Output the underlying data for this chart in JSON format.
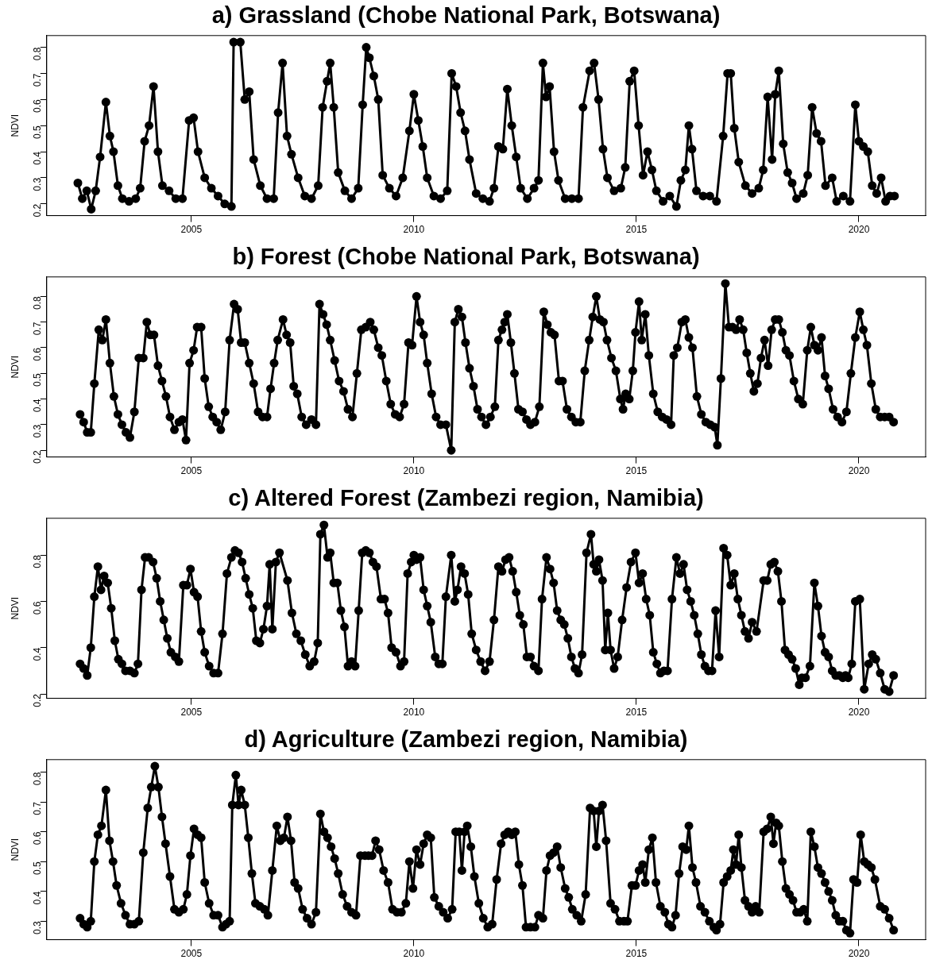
{
  "chart_data": [
    {
      "type": "line",
      "title": "a) Grassland (Chobe National Park, Botswana)",
      "ylabel": "NDVI",
      "marker": "circle",
      "line_style": "solid",
      "grid": false,
      "xlim": [
        2001.75,
        2021.5
      ],
      "ylim": [
        0.155,
        0.845
      ],
      "xticks": [
        2005,
        2010,
        2015,
        2020
      ],
      "yticks": [
        0.2,
        0.3,
        0.4,
        0.5,
        0.6,
        0.7,
        0.8
      ],
      "x": [
        2002.45,
        2002.55,
        2002.65,
        2002.75,
        2002.85,
        2002.95,
        2003.08,
        2003.17,
        2003.25,
        2003.35,
        2003.45,
        2003.6,
        2003.75,
        2003.85,
        2003.95,
        2004.05,
        2004.15,
        2004.25,
        2004.35,
        2004.5,
        2004.65,
        2004.8,
        2004.95,
        2005.05,
        2005.15,
        2005.3,
        2005.45,
        2005.6,
        2005.75,
        2005.9,
        2005.95,
        2006.1,
        2006.2,
        2006.3,
        2006.4,
        2006.55,
        2006.7,
        2006.85,
        2006.95,
        2007.05,
        2007.15,
        2007.25,
        2007.4,
        2007.55,
        2007.7,
        2007.85,
        2007.95,
        2008.05,
        2008.12,
        2008.2,
        2008.3,
        2008.45,
        2008.6,
        2008.75,
        2008.85,
        2008.93,
        2009.0,
        2009.1,
        2009.2,
        2009.3,
        2009.45,
        2009.6,
        2009.75,
        2009.9,
        2010.0,
        2010.1,
        2010.2,
        2010.3,
        2010.45,
        2010.6,
        2010.75,
        2010.85,
        2010.95,
        2011.05,
        2011.15,
        2011.25,
        2011.4,
        2011.55,
        2011.7,
        2011.8,
        2011.9,
        2012.0,
        2012.1,
        2012.2,
        2012.3,
        2012.4,
        2012.55,
        2012.7,
        2012.8,
        2012.9,
        2012.97,
        2013.05,
        2013.15,
        2013.25,
        2013.4,
        2013.55,
        2013.7,
        2013.8,
        2013.95,
        2014.05,
        2014.15,
        2014.25,
        2014.35,
        2014.5,
        2014.65,
        2014.75,
        2014.85,
        2014.95,
        2015.05,
        2015.15,
        2015.25,
        2015.35,
        2015.45,
        2015.6,
        2015.75,
        2015.9,
        2016.0,
        2016.1,
        2016.18,
        2016.25,
        2016.35,
        2016.5,
        2016.65,
        2016.8,
        2016.95,
        2017.05,
        2017.12,
        2017.2,
        2017.3,
        2017.45,
        2017.6,
        2017.75,
        2017.85,
        2017.95,
        2018.05,
        2018.12,
        2018.2,
        2018.3,
        2018.4,
        2018.5,
        2018.6,
        2018.75,
        2018.85,
        2018.95,
        2019.05,
        2019.15,
        2019.25,
        2019.4,
        2019.5,
        2019.65,
        2019.8,
        2019.92,
        2020.0,
        2020.1,
        2020.2,
        2020.3,
        2020.4,
        2020.5,
        2020.6,
        2020.7,
        2020.8
      ],
      "series": [
        {
          "color": "#000000",
          "values": [
            0.28,
            0.22,
            0.25,
            0.18,
            0.25,
            0.38,
            0.59,
            0.46,
            0.4,
            0.27,
            0.22,
            0.21,
            0.22,
            0.26,
            0.44,
            0.5,
            0.65,
            0.4,
            0.27,
            0.25,
            0.22,
            0.22,
            0.52,
            0.53,
            0.4,
            0.3,
            0.26,
            0.23,
            0.2,
            0.19,
            0.82,
            0.82,
            0.6,
            0.63,
            0.37,
            0.27,
            0.22,
            0.22,
            0.55,
            0.74,
            0.46,
            0.39,
            0.3,
            0.23,
            0.22,
            0.27,
            0.57,
            0.67,
            0.74,
            0.57,
            0.32,
            0.25,
            0.22,
            0.26,
            0.58,
            0.8,
            0.76,
            0.69,
            0.6,
            0.31,
            0.26,
            0.23,
            0.3,
            0.48,
            0.62,
            0.52,
            0.42,
            0.3,
            0.23,
            0.22,
            0.25,
            0.7,
            0.65,
            0.55,
            0.48,
            0.37,
            0.24,
            0.22,
            0.21,
            0.26,
            0.42,
            0.41,
            0.64,
            0.5,
            0.38,
            0.26,
            0.22,
            0.26,
            0.29,
            0.74,
            0.61,
            0.65,
            0.4,
            0.29,
            0.22,
            0.22,
            0.22,
            0.57,
            0.71,
            0.74,
            0.6,
            0.41,
            0.3,
            0.25,
            0.26,
            0.34,
            0.67,
            0.71,
            0.5,
            0.31,
            0.4,
            0.33,
            0.25,
            0.21,
            0.23,
            0.19,
            0.29,
            0.33,
            0.5,
            0.41,
            0.25,
            0.23,
            0.23,
            0.21,
            0.46,
            0.7,
            0.7,
            0.49,
            0.36,
            0.27,
            0.24,
            0.26,
            0.33,
            0.61,
            0.37,
            0.62,
            0.71,
            0.43,
            0.32,
            0.28,
            0.22,
            0.24,
            0.31,
            0.57,
            0.47,
            0.44,
            0.27,
            0.3,
            0.21,
            0.23,
            0.21,
            0.58,
            0.44,
            0.42,
            0.4,
            0.27,
            0.24,
            0.3,
            0.21,
            0.23,
            0.23
          ]
        }
      ]
    },
    {
      "type": "line",
      "title": "b) Forest (Chobe National Park, Botswana)",
      "ylabel": "NDVI",
      "marker": "circle",
      "line_style": "solid",
      "grid": false,
      "xlim": [
        2001.75,
        2021.5
      ],
      "ylim": [
        0.174,
        0.876
      ],
      "xticks": [
        2005,
        2010,
        2015,
        2020
      ],
      "yticks": [
        0.2,
        0.3,
        0.4,
        0.5,
        0.6,
        0.7,
        0.8
      ],
      "x": [
        2002.5,
        2002.58,
        2002.66,
        2002.74,
        2002.82,
        2002.92,
        2003.0,
        2003.08,
        2003.17,
        2003.26,
        2003.35,
        2003.44,
        2003.53,
        2003.62,
        2003.72,
        2003.82,
        2003.92,
        2004.0,
        2004.08,
        2004.16,
        2004.25,
        2004.34,
        2004.43,
        2004.52,
        2004.62,
        2004.72,
        2004.8,
        2004.88,
        2004.96,
        2005.05,
        2005.13,
        2005.22,
        2005.3,
        2005.39,
        2005.48,
        2005.57,
        2005.66,
        2005.76,
        2005.86,
        2005.96,
        2006.04,
        2006.12,
        2006.2,
        2006.3,
        2006.4,
        2006.5,
        2006.6,
        2006.7,
        2006.78,
        2006.86,
        2006.94,
        2007.06,
        2007.14,
        2007.22,
        2007.3,
        2007.38,
        2007.48,
        2007.58,
        2007.7,
        2007.8,
        2007.88,
        2007.96,
        2008.04,
        2008.12,
        2008.22,
        2008.32,
        2008.42,
        2008.52,
        2008.62,
        2008.72,
        2008.82,
        2008.92,
        2009.02,
        2009.1,
        2009.2,
        2009.28,
        2009.38,
        2009.48,
        2009.58,
        2009.68,
        2009.78,
        2009.88,
        2009.96,
        2010.06,
        2010.14,
        2010.22,
        2010.3,
        2010.4,
        2010.5,
        2010.6,
        2010.72,
        2010.84,
        2010.92,
        2011.0,
        2011.08,
        2011.16,
        2011.25,
        2011.34,
        2011.43,
        2011.52,
        2011.62,
        2011.72,
        2011.82,
        2011.9,
        2011.98,
        2012.04,
        2012.1,
        2012.18,
        2012.26,
        2012.35,
        2012.44,
        2012.53,
        2012.62,
        2012.72,
        2012.82,
        2012.92,
        2013.0,
        2013.08,
        2013.16,
        2013.26,
        2013.34,
        2013.44,
        2013.54,
        2013.64,
        2013.74,
        2013.84,
        2013.94,
        2014.02,
        2014.1,
        2014.18,
        2014.26,
        2014.34,
        2014.44,
        2014.54,
        2014.64,
        2014.7,
        2014.76,
        2014.84,
        2014.92,
        2014.98,
        2015.06,
        2015.12,
        2015.2,
        2015.28,
        2015.38,
        2015.48,
        2015.58,
        2015.68,
        2015.78,
        2015.84,
        2015.92,
        2016.02,
        2016.1,
        2016.18,
        2016.26,
        2016.36,
        2016.46,
        2016.56,
        2016.66,
        2016.76,
        2016.82,
        2016.9,
        2017.0,
        2017.08,
        2017.16,
        2017.24,
        2017.32,
        2017.4,
        2017.48,
        2017.56,
        2017.64,
        2017.72,
        2017.8,
        2017.88,
        2017.96,
        2018.04,
        2018.12,
        2018.2,
        2018.28,
        2018.36,
        2018.44,
        2018.54,
        2018.64,
        2018.74,
        2018.84,
        2018.92,
        2019.0,
        2019.08,
        2019.16,
        2019.24,
        2019.32,
        2019.42,
        2019.52,
        2019.62,
        2019.72,
        2019.82,
        2019.92,
        2020.02,
        2020.1,
        2020.18,
        2020.28,
        2020.38,
        2020.48,
        2020.58,
        2020.68,
        2020.78
      ],
      "series": [
        {
          "color": "#000000",
          "values": [
            0.34,
            0.31,
            0.27,
            0.27,
            0.46,
            0.67,
            0.63,
            0.71,
            0.54,
            0.41,
            0.34,
            0.3,
            0.27,
            0.25,
            0.35,
            0.56,
            0.56,
            0.7,
            0.65,
            0.65,
            0.53,
            0.47,
            0.41,
            0.33,
            0.28,
            0.31,
            0.32,
            0.24,
            0.54,
            0.59,
            0.68,
            0.68,
            0.48,
            0.37,
            0.33,
            0.31,
            0.28,
            0.35,
            0.63,
            0.77,
            0.75,
            0.62,
            0.62,
            0.54,
            0.46,
            0.35,
            0.33,
            0.33,
            0.44,
            0.54,
            0.63,
            0.71,
            0.65,
            0.62,
            0.45,
            0.42,
            0.33,
            0.3,
            0.32,
            0.3,
            0.77,
            0.73,
            0.69,
            0.63,
            0.55,
            0.47,
            0.43,
            0.36,
            0.33,
            0.5,
            0.67,
            0.68,
            0.7,
            0.67,
            0.6,
            0.57,
            0.47,
            0.38,
            0.34,
            0.33,
            0.38,
            0.62,
            0.61,
            0.8,
            0.7,
            0.65,
            0.54,
            0.42,
            0.33,
            0.3,
            0.3,
            0.2,
            0.7,
            0.75,
            0.72,
            0.62,
            0.52,
            0.45,
            0.36,
            0.33,
            0.3,
            0.33,
            0.37,
            0.63,
            0.67,
            0.7,
            0.73,
            0.62,
            0.5,
            0.36,
            0.35,
            0.32,
            0.3,
            0.31,
            0.37,
            0.74,
            0.69,
            0.66,
            0.65,
            0.47,
            0.47,
            0.36,
            0.33,
            0.31,
            0.31,
            0.51,
            0.63,
            0.72,
            0.8,
            0.71,
            0.7,
            0.63,
            0.56,
            0.51,
            0.4,
            0.36,
            0.42,
            0.4,
            0.51,
            0.66,
            0.78,
            0.63,
            0.73,
            0.57,
            0.42,
            0.35,
            0.33,
            0.32,
            0.3,
            0.57,
            0.6,
            0.7,
            0.71,
            0.64,
            0.6,
            0.41,
            0.34,
            0.31,
            0.3,
            0.29,
            0.22,
            0.48,
            0.85,
            0.68,
            0.68,
            0.67,
            0.71,
            0.67,
            0.58,
            0.5,
            0.43,
            0.46,
            0.56,
            0.63,
            0.53,
            0.67,
            0.71,
            0.71,
            0.66,
            0.59,
            0.57,
            0.47,
            0.4,
            0.38,
            0.59,
            0.68,
            0.61,
            0.59,
            0.64,
            0.49,
            0.44,
            0.36,
            0.33,
            0.31,
            0.35,
            0.5,
            0.64,
            0.74,
            0.67,
            0.61,
            0.46,
            0.36,
            0.33,
            0.33,
            0.33,
            0.31
          ]
        }
      ]
    },
    {
      "type": "line",
      "title": "c) Altered Forest (Zambezi region, Namibia)",
      "ylabel": "NDVI",
      "marker": "circle",
      "line_style": "solid",
      "grid": false,
      "xlim": [
        2001.75,
        2021.5
      ],
      "ylim": [
        0.181,
        0.959
      ],
      "xticks": [
        2005,
        2010,
        2015,
        2020
      ],
      "yticks": [
        0.2,
        0.4,
        0.6,
        0.8
      ],
      "x": [
        2002.5,
        2002.58,
        2002.66,
        2002.74,
        2002.82,
        2002.9,
        2002.97,
        2003.04,
        2003.12,
        2003.2,
        2003.28,
        2003.36,
        2003.44,
        2003.52,
        2003.62,
        2003.72,
        2003.8,
        2003.88,
        2003.96,
        2004.04,
        2004.14,
        2004.22,
        2004.3,
        2004.38,
        2004.46,
        2004.54,
        2004.64,
        2004.72,
        2004.82,
        2004.9,
        2004.98,
        2005.06,
        2005.14,
        2005.22,
        2005.3,
        2005.4,
        2005.5,
        2005.6,
        2005.7,
        2005.8,
        2005.9,
        2005.98,
        2006.06,
        2006.14,
        2006.22,
        2006.3,
        2006.38,
        2006.46,
        2006.54,
        2006.62,
        2006.7,
        2006.76,
        2006.82,
        2006.9,
        2006.98,
        2007.16,
        2007.26,
        2007.36,
        2007.46,
        2007.56,
        2007.66,
        2007.76,
        2007.84,
        2007.9,
        2007.98,
        2008.06,
        2008.12,
        2008.2,
        2008.28,
        2008.36,
        2008.44,
        2008.52,
        2008.6,
        2008.68,
        2008.76,
        2008.84,
        2008.92,
        2009.0,
        2009.08,
        2009.16,
        2009.26,
        2009.34,
        2009.42,
        2009.5,
        2009.6,
        2009.7,
        2009.78,
        2009.86,
        2009.94,
        2010.0,
        2010.06,
        2010.14,
        2010.22,
        2010.3,
        2010.38,
        2010.48,
        2010.56,
        2010.64,
        2010.72,
        2010.84,
        2010.92,
        2010.98,
        2011.06,
        2011.14,
        2011.22,
        2011.3,
        2011.4,
        2011.5,
        2011.6,
        2011.7,
        2011.8,
        2011.9,
        2011.98,
        2012.06,
        2012.14,
        2012.22,
        2012.3,
        2012.38,
        2012.46,
        2012.54,
        2012.62,
        2012.7,
        2012.8,
        2012.88,
        2012.98,
        2013.06,
        2013.14,
        2013.22,
        2013.3,
        2013.38,
        2013.46,
        2013.54,
        2013.62,
        2013.7,
        2013.78,
        2013.88,
        2013.98,
        2014.04,
        2014.1,
        2014.16,
        2014.24,
        2014.3,
        2014.36,
        2014.42,
        2014.5,
        2014.58,
        2014.68,
        2014.78,
        2014.88,
        2014.98,
        2015.06,
        2015.14,
        2015.22,
        2015.3,
        2015.38,
        2015.46,
        2015.54,
        2015.62,
        2015.7,
        2015.8,
        2015.9,
        2015.98,
        2016.06,
        2016.14,
        2016.22,
        2016.3,
        2016.38,
        2016.46,
        2016.54,
        2016.62,
        2016.7,
        2016.78,
        2016.86,
        2016.96,
        2017.04,
        2017.12,
        2017.2,
        2017.28,
        2017.36,
        2017.44,
        2017.52,
        2017.6,
        2017.7,
        2017.86,
        2017.94,
        2018.02,
        2018.1,
        2018.18,
        2018.26,
        2018.34,
        2018.42,
        2018.5,
        2018.58,
        2018.66,
        2018.72,
        2018.8,
        2018.9,
        2019.0,
        2019.08,
        2019.16,
        2019.24,
        2019.32,
        2019.4,
        2019.48,
        2019.56,
        2019.64,
        2019.7,
        2019.76,
        2019.84,
        2019.92,
        2020.02,
        2020.12,
        2020.22,
        2020.3,
        2020.38,
        2020.48,
        2020.58,
        2020.68,
        2020.78
      ],
      "series": [
        {
          "color": "#000000",
          "values": [
            0.33,
            0.31,
            0.28,
            0.4,
            0.62,
            0.75,
            0.65,
            0.71,
            0.68,
            0.57,
            0.43,
            0.35,
            0.33,
            0.3,
            0.3,
            0.29,
            0.33,
            0.65,
            0.79,
            0.79,
            0.77,
            0.7,
            0.6,
            0.52,
            0.44,
            0.38,
            0.36,
            0.34,
            0.67,
            0.67,
            0.74,
            0.64,
            0.62,
            0.47,
            0.38,
            0.32,
            0.29,
            0.29,
            0.46,
            0.72,
            0.79,
            0.82,
            0.81,
            0.77,
            0.7,
            0.63,
            0.57,
            0.43,
            0.42,
            0.48,
            0.58,
            0.76,
            0.48,
            0.77,
            0.81,
            0.69,
            0.55,
            0.46,
            0.43,
            0.37,
            0.32,
            0.34,
            0.42,
            0.89,
            0.93,
            0.79,
            0.81,
            0.68,
            0.68,
            0.56,
            0.49,
            0.32,
            0.34,
            0.32,
            0.56,
            0.81,
            0.82,
            0.81,
            0.77,
            0.75,
            0.61,
            0.61,
            0.55,
            0.4,
            0.38,
            0.32,
            0.34,
            0.72,
            0.77,
            0.8,
            0.78,
            0.79,
            0.65,
            0.58,
            0.51,
            0.36,
            0.33,
            0.33,
            0.62,
            0.8,
            0.6,
            0.65,
            0.75,
            0.72,
            0.63,
            0.46,
            0.39,
            0.34,
            0.3,
            0.34,
            0.52,
            0.75,
            0.73,
            0.78,
            0.79,
            0.73,
            0.64,
            0.54,
            0.5,
            0.36,
            0.36,
            0.32,
            0.3,
            0.61,
            0.79,
            0.74,
            0.68,
            0.56,
            0.52,
            0.5,
            0.44,
            0.36,
            0.31,
            0.29,
            0.37,
            0.81,
            0.89,
            0.76,
            0.73,
            0.78,
            0.69,
            0.39,
            0.55,
            0.39,
            0.31,
            0.36,
            0.52,
            0.66,
            0.77,
            0.81,
            0.68,
            0.72,
            0.61,
            0.54,
            0.38,
            0.33,
            0.29,
            0.3,
            0.3,
            0.61,
            0.79,
            0.72,
            0.76,
            0.65,
            0.6,
            0.54,
            0.46,
            0.37,
            0.32,
            0.3,
            0.3,
            0.56,
            0.36,
            0.83,
            0.8,
            0.67,
            0.72,
            0.61,
            0.54,
            0.47,
            0.44,
            0.51,
            0.47,
            0.69,
            0.69,
            0.76,
            0.77,
            0.73,
            0.6,
            0.39,
            0.37,
            0.35,
            0.31,
            0.24,
            0.27,
            0.27,
            0.32,
            0.68,
            0.58,
            0.45,
            0.38,
            0.36,
            0.3,
            0.28,
            0.28,
            0.27,
            0.28,
            0.27,
            0.33,
            0.6,
            0.61,
            0.22,
            0.33,
            0.37,
            0.35,
            0.29,
            0.22,
            0.21,
            0.28
          ]
        }
      ]
    },
    {
      "type": "line",
      "title": "d) Agriculture (Zambezi region, Namibia)",
      "ylabel": "NDVI",
      "marker": "circle",
      "line_style": "solid",
      "grid": false,
      "xlim": [
        2001.75,
        2021.5
      ],
      "ylim": [
        0.238,
        0.842
      ],
      "xticks": [
        2005,
        2010,
        2015,
        2020
      ],
      "yticks": [
        0.3,
        0.4,
        0.5,
        0.6,
        0.7,
        0.8
      ],
      "x": [
        2002.5,
        2002.58,
        2002.66,
        2002.74,
        2002.82,
        2002.9,
        2002.98,
        2003.08,
        2003.16,
        2003.24,
        2003.32,
        2003.42,
        2003.52,
        2003.62,
        2003.72,
        2003.82,
        2003.92,
        2004.02,
        2004.1,
        2004.18,
        2004.26,
        2004.34,
        2004.42,
        2004.52,
        2004.62,
        2004.72,
        2004.82,
        2004.9,
        2004.98,
        2005.06,
        2005.14,
        2005.22,
        2005.3,
        2005.4,
        2005.5,
        2005.6,
        2005.7,
        2005.78,
        2005.86,
        2005.92,
        2006.0,
        2006.06,
        2006.12,
        2006.2,
        2006.28,
        2006.36,
        2006.44,
        2006.54,
        2006.64,
        2006.72,
        2006.82,
        2006.92,
        2007.0,
        2007.08,
        2007.16,
        2007.24,
        2007.32,
        2007.4,
        2007.5,
        2007.6,
        2007.7,
        2007.8,
        2007.9,
        2007.98,
        2008.06,
        2008.14,
        2008.22,
        2008.3,
        2008.4,
        2008.5,
        2008.6,
        2008.7,
        2008.8,
        2008.9,
        2008.98,
        2009.06,
        2009.14,
        2009.22,
        2009.32,
        2009.42,
        2009.52,
        2009.62,
        2009.72,
        2009.82,
        2009.9,
        2009.98,
        2010.06,
        2010.14,
        2010.22,
        2010.3,
        2010.38,
        2010.46,
        2010.56,
        2010.66,
        2010.76,
        2010.86,
        2010.94,
        2011.02,
        2011.08,
        2011.14,
        2011.2,
        2011.28,
        2011.36,
        2011.46,
        2011.56,
        2011.66,
        2011.76,
        2011.86,
        2011.96,
        2012.04,
        2012.12,
        2012.2,
        2012.28,
        2012.36,
        2012.44,
        2012.52,
        2012.62,
        2012.72,
        2012.8,
        2012.9,
        2012.98,
        2013.06,
        2013.14,
        2013.22,
        2013.3,
        2013.4,
        2013.48,
        2013.56,
        2013.66,
        2013.76,
        2013.86,
        2013.96,
        2014.04,
        2014.1,
        2014.16,
        2014.24,
        2014.32,
        2014.42,
        2014.52,
        2014.62,
        2014.72,
        2014.8,
        2014.9,
        2014.98,
        2015.06,
        2015.14,
        2015.2,
        2015.28,
        2015.36,
        2015.44,
        2015.54,
        2015.64,
        2015.72,
        2015.8,
        2015.88,
        2015.96,
        2016.04,
        2016.12,
        2016.18,
        2016.26,
        2016.34,
        2016.44,
        2016.54,
        2016.64,
        2016.74,
        2016.8,
        2016.88,
        2016.96,
        2017.04,
        2017.12,
        2017.18,
        2017.24,
        2017.3,
        2017.36,
        2017.44,
        2017.52,
        2017.6,
        2017.68,
        2017.76,
        2017.86,
        2017.94,
        2018.02,
        2018.08,
        2018.14,
        2018.2,
        2018.28,
        2018.36,
        2018.44,
        2018.52,
        2018.6,
        2018.68,
        2018.76,
        2018.84,
        2018.92,
        2019.0,
        2019.08,
        2019.16,
        2019.24,
        2019.32,
        2019.4,
        2019.48,
        2019.56,
        2019.64,
        2019.72,
        2019.8,
        2019.88,
        2019.96,
        2020.04,
        2020.12,
        2020.2,
        2020.28,
        2020.36,
        2020.48,
        2020.58,
        2020.68,
        2020.78
      ],
      "series": [
        {
          "color": "#000000",
          "values": [
            0.31,
            0.29,
            0.28,
            0.3,
            0.5,
            0.59,
            0.62,
            0.74,
            0.57,
            0.5,
            0.42,
            0.36,
            0.32,
            0.29,
            0.29,
            0.3,
            0.53,
            0.68,
            0.75,
            0.82,
            0.75,
            0.65,
            0.56,
            0.45,
            0.34,
            0.33,
            0.34,
            0.39,
            0.52,
            0.61,
            0.59,
            0.58,
            0.43,
            0.36,
            0.32,
            0.32,
            0.28,
            0.29,
            0.3,
            0.69,
            0.79,
            0.69,
            0.74,
            0.69,
            0.58,
            0.46,
            0.36,
            0.35,
            0.34,
            0.32,
            0.47,
            0.62,
            0.57,
            0.58,
            0.65,
            0.57,
            0.43,
            0.41,
            0.34,
            0.31,
            0.29,
            0.33,
            0.66,
            0.6,
            0.58,
            0.55,
            0.51,
            0.46,
            0.39,
            0.35,
            0.33,
            0.32,
            0.52,
            0.52,
            0.52,
            0.52,
            0.57,
            0.54,
            0.47,
            0.43,
            0.34,
            0.33,
            0.33,
            0.36,
            0.5,
            0.41,
            0.54,
            0.49,
            0.56,
            0.59,
            0.58,
            0.38,
            0.35,
            0.33,
            0.31,
            0.34,
            0.6,
            0.6,
            0.47,
            0.6,
            0.62,
            0.55,
            0.45,
            0.36,
            0.31,
            0.28,
            0.29,
            0.44,
            0.56,
            0.59,
            0.6,
            0.59,
            0.6,
            0.49,
            0.42,
            0.28,
            0.28,
            0.28,
            0.32,
            0.31,
            0.47,
            0.52,
            0.53,
            0.55,
            0.48,
            0.41,
            0.38,
            0.34,
            0.32,
            0.3,
            0.39,
            0.68,
            0.67,
            0.55,
            0.67,
            0.69,
            0.57,
            0.36,
            0.34,
            0.3,
            0.3,
            0.3,
            0.42,
            0.42,
            0.47,
            0.49,
            0.43,
            0.54,
            0.58,
            0.43,
            0.35,
            0.33,
            0.29,
            0.28,
            0.32,
            0.46,
            0.55,
            0.54,
            0.62,
            0.48,
            0.43,
            0.35,
            0.33,
            0.3,
            0.28,
            0.27,
            0.29,
            0.43,
            0.45,
            0.47,
            0.54,
            0.49,
            0.59,
            0.48,
            0.37,
            0.35,
            0.33,
            0.35,
            0.33,
            0.6,
            0.61,
            0.65,
            0.56,
            0.63,
            0.62,
            0.5,
            0.41,
            0.39,
            0.37,
            0.33,
            0.33,
            0.34,
            0.3,
            0.6,
            0.55,
            0.48,
            0.46,
            0.43,
            0.4,
            0.37,
            0.32,
            0.3,
            0.3,
            0.27,
            0.26,
            0.44,
            0.43,
            0.59,
            0.5,
            0.49,
            0.48,
            0.44,
            0.35,
            0.34,
            0.31,
            0.27
          ]
        }
      ]
    }
  ]
}
